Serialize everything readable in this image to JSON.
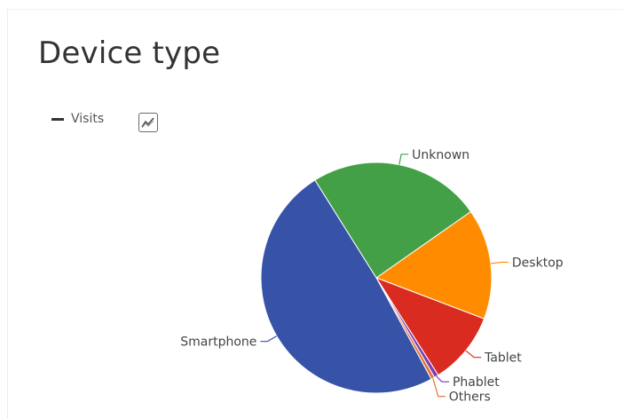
{
  "card": {
    "title": "Device type"
  },
  "legend": {
    "label": "Visits",
    "toggle_icon": "line-chart-icon"
  },
  "chart_data": {
    "type": "pie",
    "series_name": "Visits",
    "slices": [
      {
        "label": "Desktop",
        "value": 15.5,
        "color": "#ff8c00"
      },
      {
        "label": "Tablet",
        "value": 10.2,
        "color": "#d92b20"
      },
      {
        "label": "Phablet",
        "value": 0.6,
        "color": "#7a3fb0"
      },
      {
        "label": "Others",
        "value": 0.5,
        "color": "#e86f2c"
      },
      {
        "label": "Smartphone",
        "value": 49.0,
        "color": "#3653a8"
      },
      {
        "label": "Unknown",
        "value": 24.2,
        "color": "#43a047"
      }
    ],
    "start_angle_deg": 35,
    "legend_position": "top-left"
  }
}
